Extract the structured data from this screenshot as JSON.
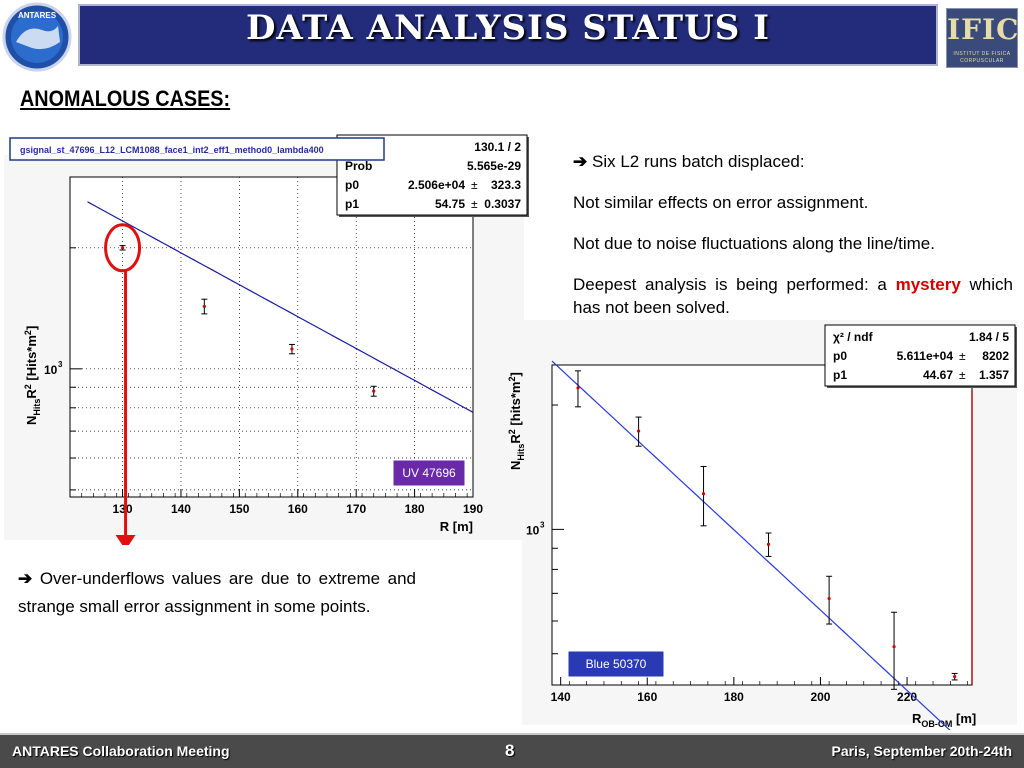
{
  "header": {
    "title": "DATA ANALYSIS STATUS I",
    "left_logo": "ANTARES",
    "right_logo_main": "IFIC",
    "right_logo_sub": "INSTITUT DE FISICA CORPUSCULAR"
  },
  "section_heading": "ANOMALOUS CASES:",
  "left_note": "Over-underflows values are due to extreme and strange small error assignment in some points.",
  "right_notes": {
    "line1": "Six L2 runs batch displaced:",
    "line2": "Not similar effects on error assignment.",
    "line3": "Not due to noise fluctuations along the line/time.",
    "line4_before": "Deepest analysis is being performed: a",
    "line4_highlight": "mystery",
    "line4_after": "which has not been solved."
  },
  "footer": {
    "left": "ANTARES Collaboration Meeting",
    "page": "8",
    "right": "Paris, September 20th-24th"
  },
  "colors": {
    "title_bar": "#222c7a",
    "highlight_red": "#d40000",
    "fit_line": "#1a1aa0",
    "fit_line_2": "#2a3ae0",
    "label_box_purple": "#6a2aa8",
    "label_box_blue": "#2a3ab4",
    "footer_bg": "#4a4a4a"
  },
  "chart_data": [
    {
      "type": "scatter",
      "title": "gsignal_st_47696_L12_LCM1088_face1_int2_eff1_method0_lambda400",
      "ylabel_main": "N",
      "ylabel_sub": "Hits",
      "ylabel_rest": "R",
      "ylabel_sup": "2",
      "ylabel_unit": "[Hits*m",
      "ylabel_unit_sup": "2",
      "ylabel_close": "]",
      "xlabel": "R [m]",
      "xlim": [
        121,
        190
      ],
      "ylim": [
        480,
        3000
      ],
      "log_y": true,
      "grid": true,
      "x_ticks": [
        "130",
        "140",
        "150",
        "160",
        "170",
        "180",
        "190"
      ],
      "y_tick_label": "10",
      "y_tick_sup": "3",
      "tag": "UV 47696",
      "stats": [
        {
          "name": "f",
          "value": "130.1 / 2"
        },
        {
          "name": "Prob",
          "value": "5.565e-29"
        },
        {
          "name": "p0",
          "value": "2.506e+04",
          "err_sym": "±",
          "err": "323.3"
        },
        {
          "name": "p1",
          "value": "54.75",
          "err_sym": "±",
          "err": "0.3037"
        }
      ],
      "fit": {
        "p0": 25060,
        "p1": 54.75
      },
      "points": [
        {
          "x": 130,
          "y": 2000,
          "err": 25
        },
        {
          "x": 144,
          "y": 1430,
          "err": 60
        },
        {
          "x": 159,
          "y": 1120,
          "err": 30
        },
        {
          "x": 173,
          "y": 880,
          "err": 25
        }
      ]
    },
    {
      "type": "scatter",
      "title": "",
      "ylabel_main": "N",
      "ylabel_sub": "Hits",
      "ylabel_rest": "R",
      "ylabel_sup": "2",
      "ylabel_unit": "[hits*m",
      "ylabel_unit_sup": "2",
      "ylabel_close": "]",
      "xlabel_main": "R",
      "xlabel_sub": "OB-OM",
      "xlabel_unit": "[m]",
      "xlim": [
        138,
        235
      ],
      "ylim": [
        420,
        2500
      ],
      "log_y": true,
      "grid": false,
      "x_ticks": [
        "140",
        "160",
        "180",
        "200",
        "220"
      ],
      "y_tick_label": "10",
      "y_tick_sup": "3",
      "tag": "Blue 50370",
      "stats": [
        {
          "name": "χ² / ndf",
          "value": "1.84 / 5"
        },
        {
          "name": "p0",
          "value": "5.611e+04",
          "err_sym": "±",
          "err": "8202"
        },
        {
          "name": "p1",
          "value": "44.67",
          "err_sym": "±",
          "err": "1.357"
        }
      ],
      "fit": {
        "p0": 56110,
        "p1": 44.67
      },
      "points": [
        {
          "x": 144,
          "y": 2200,
          "err": 220
        },
        {
          "x": 158,
          "y": 1730,
          "err": 140
        },
        {
          "x": 173,
          "y": 1220,
          "err": 200
        },
        {
          "x": 188,
          "y": 920,
          "err": 60
        },
        {
          "x": 202,
          "y": 680,
          "err": 90
        },
        {
          "x": 217,
          "y": 520,
          "err": 110
        },
        {
          "x": 231,
          "y": 440,
          "err": 8
        }
      ]
    }
  ]
}
